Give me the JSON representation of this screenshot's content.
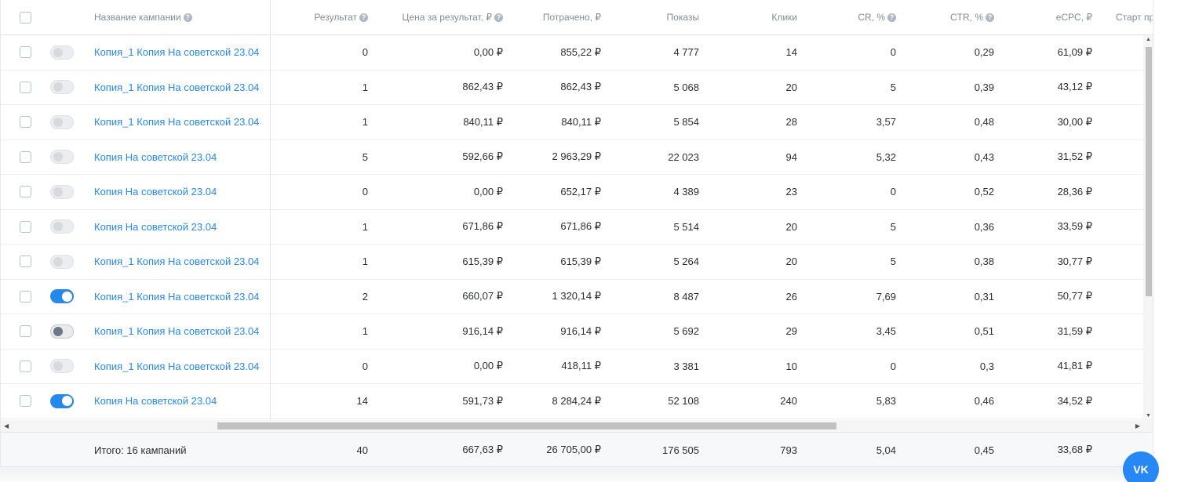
{
  "header": {
    "name": "Название кампании",
    "result": "Результат",
    "cost_per_result": "Цена за результат, ₽",
    "spent": "Потрачено, ₽",
    "impressions": "Показы",
    "clicks": "Клики",
    "cr": "CR, %",
    "ctr": "CTR, %",
    "ecpc": "eCPC, ₽",
    "start": "Старт пр"
  },
  "rows": [
    {
      "toggle": "off",
      "name": "Копия_1 Копия На советской 23.04",
      "result": "0",
      "cost_per_result": "0,00 ₽",
      "spent": "855,22 ₽",
      "impressions": "4 777",
      "clicks": "14",
      "cr": "0",
      "ctr": "0,29",
      "ecpc": "61,09 ₽"
    },
    {
      "toggle": "off",
      "name": "Копия_1 Копия На советской 23.04",
      "result": "1",
      "cost_per_result": "862,43 ₽",
      "spent": "862,43 ₽",
      "impressions": "5 068",
      "clicks": "20",
      "cr": "5",
      "ctr": "0,39",
      "ecpc": "43,12 ₽"
    },
    {
      "toggle": "off",
      "name": "Копия_1 Копия На советской 23.04",
      "result": "1",
      "cost_per_result": "840,11 ₽",
      "spent": "840,11 ₽",
      "impressions": "5 854",
      "clicks": "28",
      "cr": "3,57",
      "ctr": "0,48",
      "ecpc": "30,00 ₽"
    },
    {
      "toggle": "off",
      "name": "Копия На советской 23.04",
      "result": "5",
      "cost_per_result": "592,66 ₽",
      "spent": "2 963,29 ₽",
      "impressions": "22 023",
      "clicks": "94",
      "cr": "5,32",
      "ctr": "0,43",
      "ecpc": "31,52 ₽"
    },
    {
      "toggle": "off",
      "name": "Копия На советской 23.04",
      "result": "0",
      "cost_per_result": "0,00 ₽",
      "spent": "652,17 ₽",
      "impressions": "4 389",
      "clicks": "23",
      "cr": "0",
      "ctr": "0,52",
      "ecpc": "28,36 ₽"
    },
    {
      "toggle": "off",
      "name": "Копия На советской 23.04",
      "result": "1",
      "cost_per_result": "671,86 ₽",
      "spent": "671,86 ₽",
      "impressions": "5 514",
      "clicks": "20",
      "cr": "5",
      "ctr": "0,36",
      "ecpc": "33,59 ₽"
    },
    {
      "toggle": "off",
      "name": "Копия_1 Копия На советской 23.04",
      "result": "1",
      "cost_per_result": "615,39 ₽",
      "spent": "615,39 ₽",
      "impressions": "5 264",
      "clicks": "20",
      "cr": "5",
      "ctr": "0,38",
      "ecpc": "30,77 ₽"
    },
    {
      "toggle": "on",
      "name": "Копия_1 Копия На советской 23.04",
      "result": "2",
      "cost_per_result": "660,07 ₽",
      "spent": "1 320,14 ₽",
      "impressions": "8 487",
      "clicks": "26",
      "cr": "7,69",
      "ctr": "0,31",
      "ecpc": "50,77 ₽"
    },
    {
      "toggle": "hover",
      "name": "Копия_1 Копия На советской 23.04",
      "result": "1",
      "cost_per_result": "916,14 ₽",
      "spent": "916,14 ₽",
      "impressions": "5 692",
      "clicks": "29",
      "cr": "3,45",
      "ctr": "0,51",
      "ecpc": "31,59 ₽"
    },
    {
      "toggle": "off",
      "name": "Копия_1 Копия На советской 23.04",
      "result": "0",
      "cost_per_result": "0,00 ₽",
      "spent": "418,11 ₽",
      "impressions": "3 381",
      "clicks": "10",
      "cr": "0",
      "ctr": "0,3",
      "ecpc": "41,81 ₽"
    },
    {
      "toggle": "on",
      "name": "Копия На советской 23.04",
      "result": "14",
      "cost_per_result": "591,73 ₽",
      "spent": "8 284,24 ₽",
      "impressions": "52 108",
      "clicks": "240",
      "cr": "5,83",
      "ctr": "0,46",
      "ecpc": "34,52 ₽"
    }
  ],
  "footer": {
    "total_label": "Итого: 16 кампаний",
    "result": "40",
    "cost_per_result": "667,63 ₽",
    "spent": "26 705,00 ₽",
    "impressions": "176 505",
    "clicks": "793",
    "cr": "5,04",
    "ctr": "0,45",
    "ecpc": "33,68 ₽"
  },
  "vk_button": {
    "label": "VK",
    "icon": "vk-logo-icon"
  },
  "colors": {
    "link": "#2688eb",
    "toggle_on": "#2688eb",
    "vk": "#2787f5"
  }
}
